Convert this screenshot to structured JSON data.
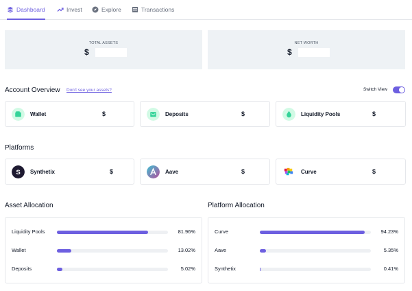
{
  "nav": {
    "tabs": [
      {
        "label": "Dashboard",
        "icon": "layers-icon",
        "active": true
      },
      {
        "label": "Invest",
        "icon": "trending-up-icon",
        "active": false
      },
      {
        "label": "Explore",
        "icon": "compass-icon",
        "active": false
      },
      {
        "label": "Transactions",
        "icon": "table-icon",
        "active": false
      }
    ]
  },
  "summary": {
    "total_assets": {
      "label": "TOTAL ASSETS",
      "currency": "$"
    },
    "net_worth": {
      "label": "NET WORTH",
      "currency": "$"
    }
  },
  "account_overview": {
    "title": "Account Overview",
    "link": "Don't see your assets?",
    "switch_label": "Switch View",
    "switch_on": true,
    "cards": [
      {
        "name": "Wallet",
        "value": "$",
        "icon": "wallet-icon"
      },
      {
        "name": "Deposits",
        "value": "$",
        "icon": "deposit-icon"
      },
      {
        "name": "Liquidity Pools",
        "value": "$",
        "icon": "droplet-icon"
      }
    ]
  },
  "platforms": {
    "title": "Platforms",
    "cards": [
      {
        "name": "Synthetix",
        "value": "$",
        "icon": "synthetix-logo-icon"
      },
      {
        "name": "Aave",
        "value": "$",
        "icon": "aave-logo-icon"
      },
      {
        "name": "Curve",
        "value": "$",
        "icon": "curve-logo-icon"
      }
    ]
  },
  "asset_allocation": {
    "title": "Asset Allocation",
    "rows": [
      {
        "label": "Liquidity Pools",
        "percent_text": "81.96%",
        "percent": 81.96
      },
      {
        "label": "Wallet",
        "percent_text": "13.02%",
        "percent": 13.02
      },
      {
        "label": "Deposits",
        "percent_text": "5.02%",
        "percent": 5.02
      }
    ]
  },
  "platform_allocation": {
    "title": "Platform Allocation",
    "rows": [
      {
        "label": "Curve",
        "percent_text": "94.23%",
        "percent": 94.23
      },
      {
        "label": "Aave",
        "percent_text": "5.35%",
        "percent": 5.35
      },
      {
        "label": "Synthetix",
        "percent_text": "0.41%",
        "percent": 0.41
      }
    ]
  },
  "colors": {
    "accent": "#6d5fe0",
    "panel_bg": "#eef2f5",
    "icon_green": "#34d399"
  }
}
